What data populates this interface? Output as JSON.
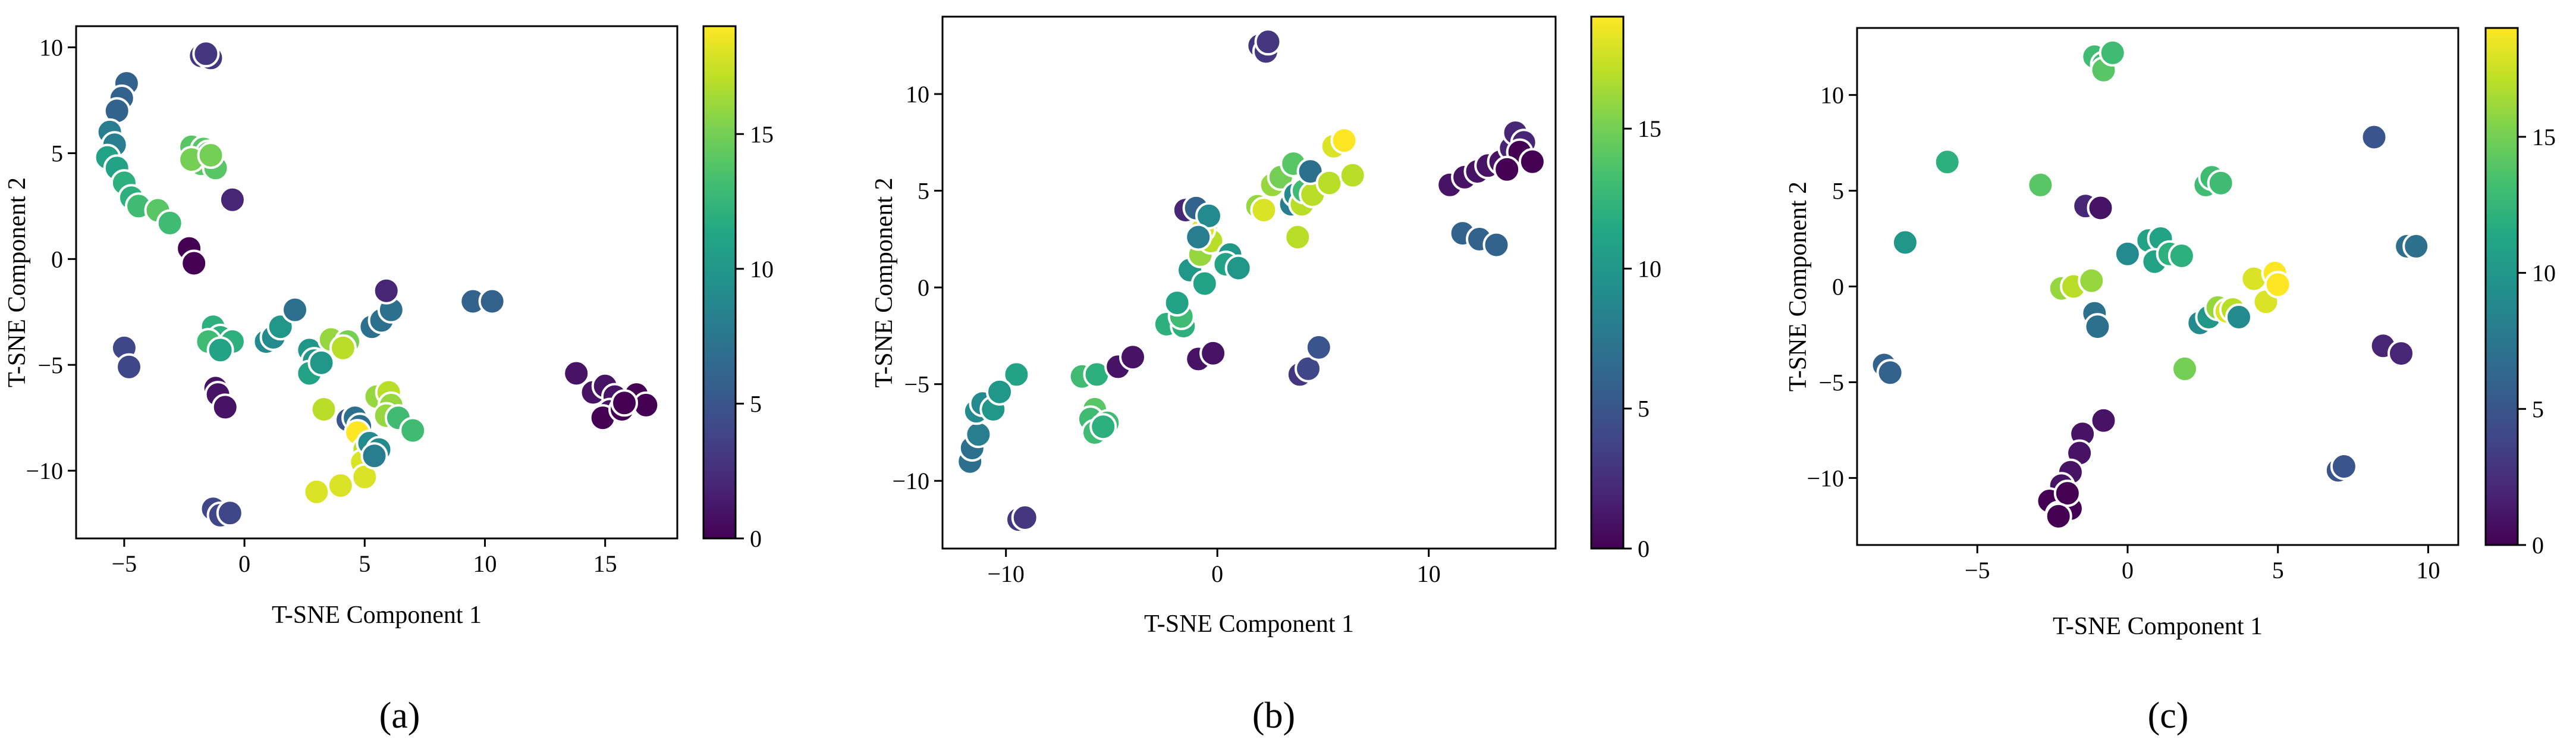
{
  "figure": {
    "panel_labels": [
      "(a)",
      "(b)",
      "(c)"
    ],
    "colormap": "viridis",
    "point_edge_color": "#ffffff"
  },
  "chart_data": [
    {
      "type": "scatter",
      "panel": "(a)",
      "xlabel": "T-SNE Component 1",
      "ylabel": "T-SNE Component 2",
      "xlim": [
        -7,
        18
      ],
      "ylim": [
        -13.2,
        11
      ],
      "xticks": [
        -5,
        0,
        5,
        10,
        15
      ],
      "yticks": [
        -10,
        -5,
        0,
        5,
        10
      ],
      "colorbar": {
        "min": 0,
        "max": 19,
        "ticks": [
          0,
          5,
          10,
          15
        ]
      },
      "points": [
        [
          -1.8,
          9.6,
          3
        ],
        [
          -1.4,
          9.5,
          3
        ],
        [
          -1.6,
          9.7,
          3
        ],
        [
          -4.9,
          8.3,
          6
        ],
        [
          -5.1,
          7.6,
          6
        ],
        [
          -5.3,
          7.0,
          6
        ],
        [
          -5.6,
          6.0,
          8
        ],
        [
          -5.4,
          5.4,
          8
        ],
        [
          -5.7,
          4.8,
          11
        ],
        [
          -5.3,
          4.3,
          11
        ],
        [
          -5.0,
          3.6,
          12
        ],
        [
          -4.7,
          2.9,
          12
        ],
        [
          -4.4,
          2.5,
          13
        ],
        [
          -3.6,
          2.3,
          14
        ],
        [
          -3.1,
          1.7,
          13
        ],
        [
          -2.2,
          5.3,
          14
        ],
        [
          -1.7,
          5.2,
          14
        ],
        [
          -1.5,
          5.0,
          14
        ],
        [
          -1.8,
          4.5,
          14
        ],
        [
          -1.2,
          4.3,
          14
        ],
        [
          -2.2,
          4.7,
          15
        ],
        [
          -1.4,
          4.9,
          15
        ],
        [
          -0.5,
          2.8,
          2
        ],
        [
          -2.3,
          0.5,
          0
        ],
        [
          -2.1,
          -0.2,
          0
        ],
        [
          -5.0,
          -4.2,
          4
        ],
        [
          -4.8,
          -5.1,
          4
        ],
        [
          -1.3,
          -3.2,
          12
        ],
        [
          -1.0,
          -3.7,
          12
        ],
        [
          -1.5,
          -3.9,
          13
        ],
        [
          -0.5,
          -3.9,
          12
        ],
        [
          -1.0,
          -4.3,
          11
        ],
        [
          -1.2,
          -6.1,
          1
        ],
        [
          -1.1,
          -6.4,
          1
        ],
        [
          -0.8,
          -7.0,
          1
        ],
        [
          -1.3,
          -11.8,
          4
        ],
        [
          -1.0,
          -12.1,
          4
        ],
        [
          -0.6,
          -12.0,
          4
        ],
        [
          0.9,
          -3.9,
          9
        ],
        [
          1.2,
          -3.7,
          9
        ],
        [
          1.5,
          -3.2,
          10
        ],
        [
          2.1,
          -2.4,
          7
        ],
        [
          2.7,
          -4.3,
          10
        ],
        [
          2.9,
          -4.8,
          10
        ],
        [
          2.7,
          -5.4,
          11
        ],
        [
          3.2,
          -4.9,
          10
        ],
        [
          3.6,
          -3.8,
          16
        ],
        [
          4.3,
          -3.9,
          15
        ],
        [
          4.1,
          -4.2,
          17
        ],
        [
          3.3,
          -7.1,
          17
        ],
        [
          3.0,
          -11.0,
          18
        ],
        [
          4.0,
          -10.7,
          18
        ],
        [
          4.3,
          -7.6,
          5
        ],
        [
          4.6,
          -7.5,
          7
        ],
        [
          4.8,
          -7.9,
          7
        ],
        [
          4.7,
          -8.2,
          19
        ],
        [
          5.0,
          -9.0,
          17
        ],
        [
          4.9,
          -9.6,
          18
        ],
        [
          5.0,
          -10.3,
          18
        ],
        [
          5.5,
          -6.5,
          16
        ],
        [
          6.0,
          -6.3,
          17
        ],
        [
          6.1,
          -6.9,
          16
        ],
        [
          5.9,
          -7.4,
          16
        ],
        [
          5.2,
          -8.7,
          9
        ],
        [
          5.6,
          -9.0,
          9
        ],
        [
          5.4,
          -9.3,
          8
        ],
        [
          6.4,
          -7.5,
          13
        ],
        [
          7.0,
          -8.1,
          13
        ],
        [
          5.3,
          -3.2,
          7
        ],
        [
          5.7,
          -2.9,
          7
        ],
        [
          6.1,
          -2.4,
          7
        ],
        [
          5.9,
          -1.5,
          2
        ],
        [
          9.5,
          -2.0,
          6
        ],
        [
          10.3,
          -2.0,
          6
        ],
        [
          13.8,
          -5.4,
          1
        ],
        [
          14.5,
          -6.3,
          1
        ],
        [
          15.0,
          -6.0,
          1
        ],
        [
          15.4,
          -6.5,
          1
        ],
        [
          15.2,
          -7.2,
          1
        ],
        [
          14.9,
          -7.5,
          0
        ],
        [
          15.7,
          -7.1,
          0
        ],
        [
          16.3,
          -6.4,
          0
        ],
        [
          16.7,
          -6.9,
          0
        ],
        [
          15.8,
          -6.8,
          0
        ]
      ]
    },
    {
      "type": "scatter",
      "panel": "(b)",
      "xlabel": "T-SNE Component 1",
      "ylabel": "T-SNE Component 2",
      "xlim": [
        -13,
        16
      ],
      "ylim": [
        -13.5,
        14
      ],
      "xticks": [
        -10,
        0,
        10
      ],
      "yticks": [
        -10,
        -5,
        0,
        5,
        10
      ],
      "colorbar": {
        "min": 0,
        "max": 19,
        "ticks": [
          0,
          5,
          10,
          15
        ]
      },
      "points": [
        [
          2.0,
          12.5,
          3
        ],
        [
          2.3,
          12.2,
          3
        ],
        [
          2.4,
          12.7,
          3
        ],
        [
          -9.4,
          -12.0,
          3
        ],
        [
          -9.1,
          -11.9,
          3
        ],
        [
          -11.7,
          -9.0,
          7
        ],
        [
          -11.6,
          -8.3,
          7
        ],
        [
          -11.3,
          -7.6,
          8
        ],
        [
          -11.4,
          -6.4,
          9
        ],
        [
          -11.1,
          -6.0,
          9
        ],
        [
          -10.6,
          -6.3,
          10
        ],
        [
          -9.5,
          -4.5,
          11
        ],
        [
          -10.3,
          -5.4,
          10
        ],
        [
          -6.4,
          -4.6,
          13
        ],
        [
          -5.7,
          -4.5,
          12
        ],
        [
          -5.8,
          -6.3,
          14
        ],
        [
          -6.0,
          -6.8,
          13
        ],
        [
          -5.2,
          -7.0,
          13
        ],
        [
          -5.8,
          -7.5,
          13
        ],
        [
          -5.4,
          -7.2,
          12
        ],
        [
          -4.7,
          -4.1,
          1
        ],
        [
          -4.0,
          -3.6,
          1
        ],
        [
          -0.9,
          -3.7,
          1
        ],
        [
          -0.2,
          -3.4,
          1
        ],
        [
          -2.4,
          -1.9,
          12
        ],
        [
          -1.6,
          -2.0,
          12
        ],
        [
          -1.7,
          -1.5,
          13
        ],
        [
          -1.9,
          -0.8,
          11
        ],
        [
          -1.3,
          0.9,
          10
        ],
        [
          -0.6,
          0.2,
          11
        ],
        [
          -0.8,
          1.7,
          16
        ],
        [
          -0.5,
          2.8,
          16
        ],
        [
          -0.3,
          2.4,
          17
        ],
        [
          -0.7,
          3.0,
          18
        ],
        [
          -1.5,
          4.0,
          2
        ],
        [
          -1.0,
          4.1,
          6
        ],
        [
          -0.4,
          3.7,
          9
        ],
        [
          -0.9,
          2.6,
          8
        ],
        [
          0.6,
          1.7,
          10
        ],
        [
          0.4,
          1.2,
          11
        ],
        [
          1.0,
          1.0,
          10
        ],
        [
          1.9,
          4.2,
          16
        ],
        [
          2.2,
          4.0,
          18
        ],
        [
          2.6,
          5.3,
          16
        ],
        [
          3.0,
          5.7,
          15
        ],
        [
          3.5,
          4.3,
          8
        ],
        [
          3.7,
          4.8,
          9
        ],
        [
          4.0,
          4.3,
          17
        ],
        [
          4.1,
          5.0,
          13
        ],
        [
          3.6,
          6.4,
          14
        ],
        [
          4.5,
          4.8,
          17
        ],
        [
          3.8,
          2.6,
          17
        ],
        [
          4.4,
          6.0,
          7
        ],
        [
          5.3,
          5.4,
          17
        ],
        [
          5.5,
          7.3,
          18
        ],
        [
          6.0,
          7.6,
          19
        ],
        [
          6.4,
          5.8,
          17
        ],
        [
          3.9,
          -4.5,
          3
        ],
        [
          4.3,
          -4.2,
          4
        ],
        [
          4.8,
          -3.1,
          5
        ],
        [
          11.6,
          2.8,
          6
        ],
        [
          12.4,
          2.5,
          6
        ],
        [
          13.2,
          2.2,
          6
        ],
        [
          11.0,
          5.3,
          1
        ],
        [
          11.7,
          5.7,
          1
        ],
        [
          12.3,
          6.0,
          1
        ],
        [
          12.8,
          6.3,
          1
        ],
        [
          13.4,
          6.5,
          1
        ],
        [
          13.9,
          7.2,
          2
        ],
        [
          14.1,
          8.0,
          2
        ],
        [
          14.5,
          7.5,
          2
        ],
        [
          14.3,
          7.0,
          0
        ],
        [
          14.9,
          6.5,
          0
        ],
        [
          13.7,
          6.1,
          0
        ]
      ]
    },
    {
      "type": "scatter",
      "panel": "(c)",
      "xlabel": "T-SNE Component 1",
      "ylabel": "T-SNE Component 2",
      "xlim": [
        -9,
        11
      ],
      "ylim": [
        -13.5,
        13.5
      ],
      "xticks": [
        -5,
        0,
        5,
        10
      ],
      "yticks": [
        -10,
        -5,
        0,
        5,
        10
      ],
      "colorbar": {
        "min": 0,
        "max": 19,
        "ticks": [
          0,
          5,
          10,
          15
        ]
      },
      "points": [
        [
          -1.1,
          12.0,
          13
        ],
        [
          -0.8,
          11.6,
          13
        ],
        [
          -0.8,
          11.3,
          14
        ],
        [
          -0.5,
          12.2,
          13
        ],
        [
          -6.0,
          6.5,
          12
        ],
        [
          -7.4,
          2.3,
          10
        ],
        [
          -2.9,
          5.3,
          14
        ],
        [
          -1.4,
          4.2,
          2
        ],
        [
          -0.9,
          4.1,
          1
        ],
        [
          2.6,
          5.3,
          13
        ],
        [
          2.8,
          5.7,
          13
        ],
        [
          3.1,
          5.4,
          13
        ],
        [
          8.2,
          7.8,
          5
        ],
        [
          9.3,
          2.1,
          7
        ],
        [
          9.6,
          2.1,
          7
        ],
        [
          -8.1,
          -4.1,
          6
        ],
        [
          -7.9,
          -4.5,
          6
        ],
        [
          -2.2,
          -0.1,
          16
        ],
        [
          -1.8,
          0.0,
          17
        ],
        [
          -1.2,
          0.3,
          16
        ],
        [
          -1.1,
          -1.4,
          7
        ],
        [
          -1.0,
          -2.1,
          7
        ],
        [
          0.0,
          1.7,
          9
        ],
        [
          0.7,
          2.4,
          11
        ],
        [
          1.1,
          2.5,
          11
        ],
        [
          0.9,
          1.3,
          11
        ],
        [
          1.4,
          1.7,
          12
        ],
        [
          1.8,
          1.6,
          12
        ],
        [
          1.9,
          -4.3,
          15
        ],
        [
          2.4,
          -1.9,
          9
        ],
        [
          2.7,
          -1.6,
          10
        ],
        [
          3.0,
          -1.1,
          16
        ],
        [
          3.3,
          -1.3,
          18
        ],
        [
          3.5,
          -1.2,
          17
        ],
        [
          3.7,
          -1.6,
          9
        ],
        [
          4.2,
          0.4,
          18
        ],
        [
          4.6,
          -0.8,
          18
        ],
        [
          4.9,
          0.7,
          19
        ],
        [
          5.0,
          0.1,
          19
        ],
        [
          8.5,
          -3.1,
          2
        ],
        [
          9.1,
          -3.5,
          2
        ],
        [
          7.0,
          -9.6,
          5
        ],
        [
          7.2,
          -9.4,
          5
        ],
        [
          -0.8,
          -7.0,
          1
        ],
        [
          -1.5,
          -7.7,
          1
        ],
        [
          -1.6,
          -8.7,
          1
        ],
        [
          -1.9,
          -9.7,
          1
        ],
        [
          -2.2,
          -10.4,
          1
        ],
        [
          -2.6,
          -11.2,
          0
        ],
        [
          -2.3,
          -11.9,
          0
        ],
        [
          -1.9,
          -11.6,
          0
        ],
        [
          -2.0,
          -10.8,
          0
        ],
        [
          -2.3,
          -12.0,
          0
        ]
      ]
    }
  ]
}
